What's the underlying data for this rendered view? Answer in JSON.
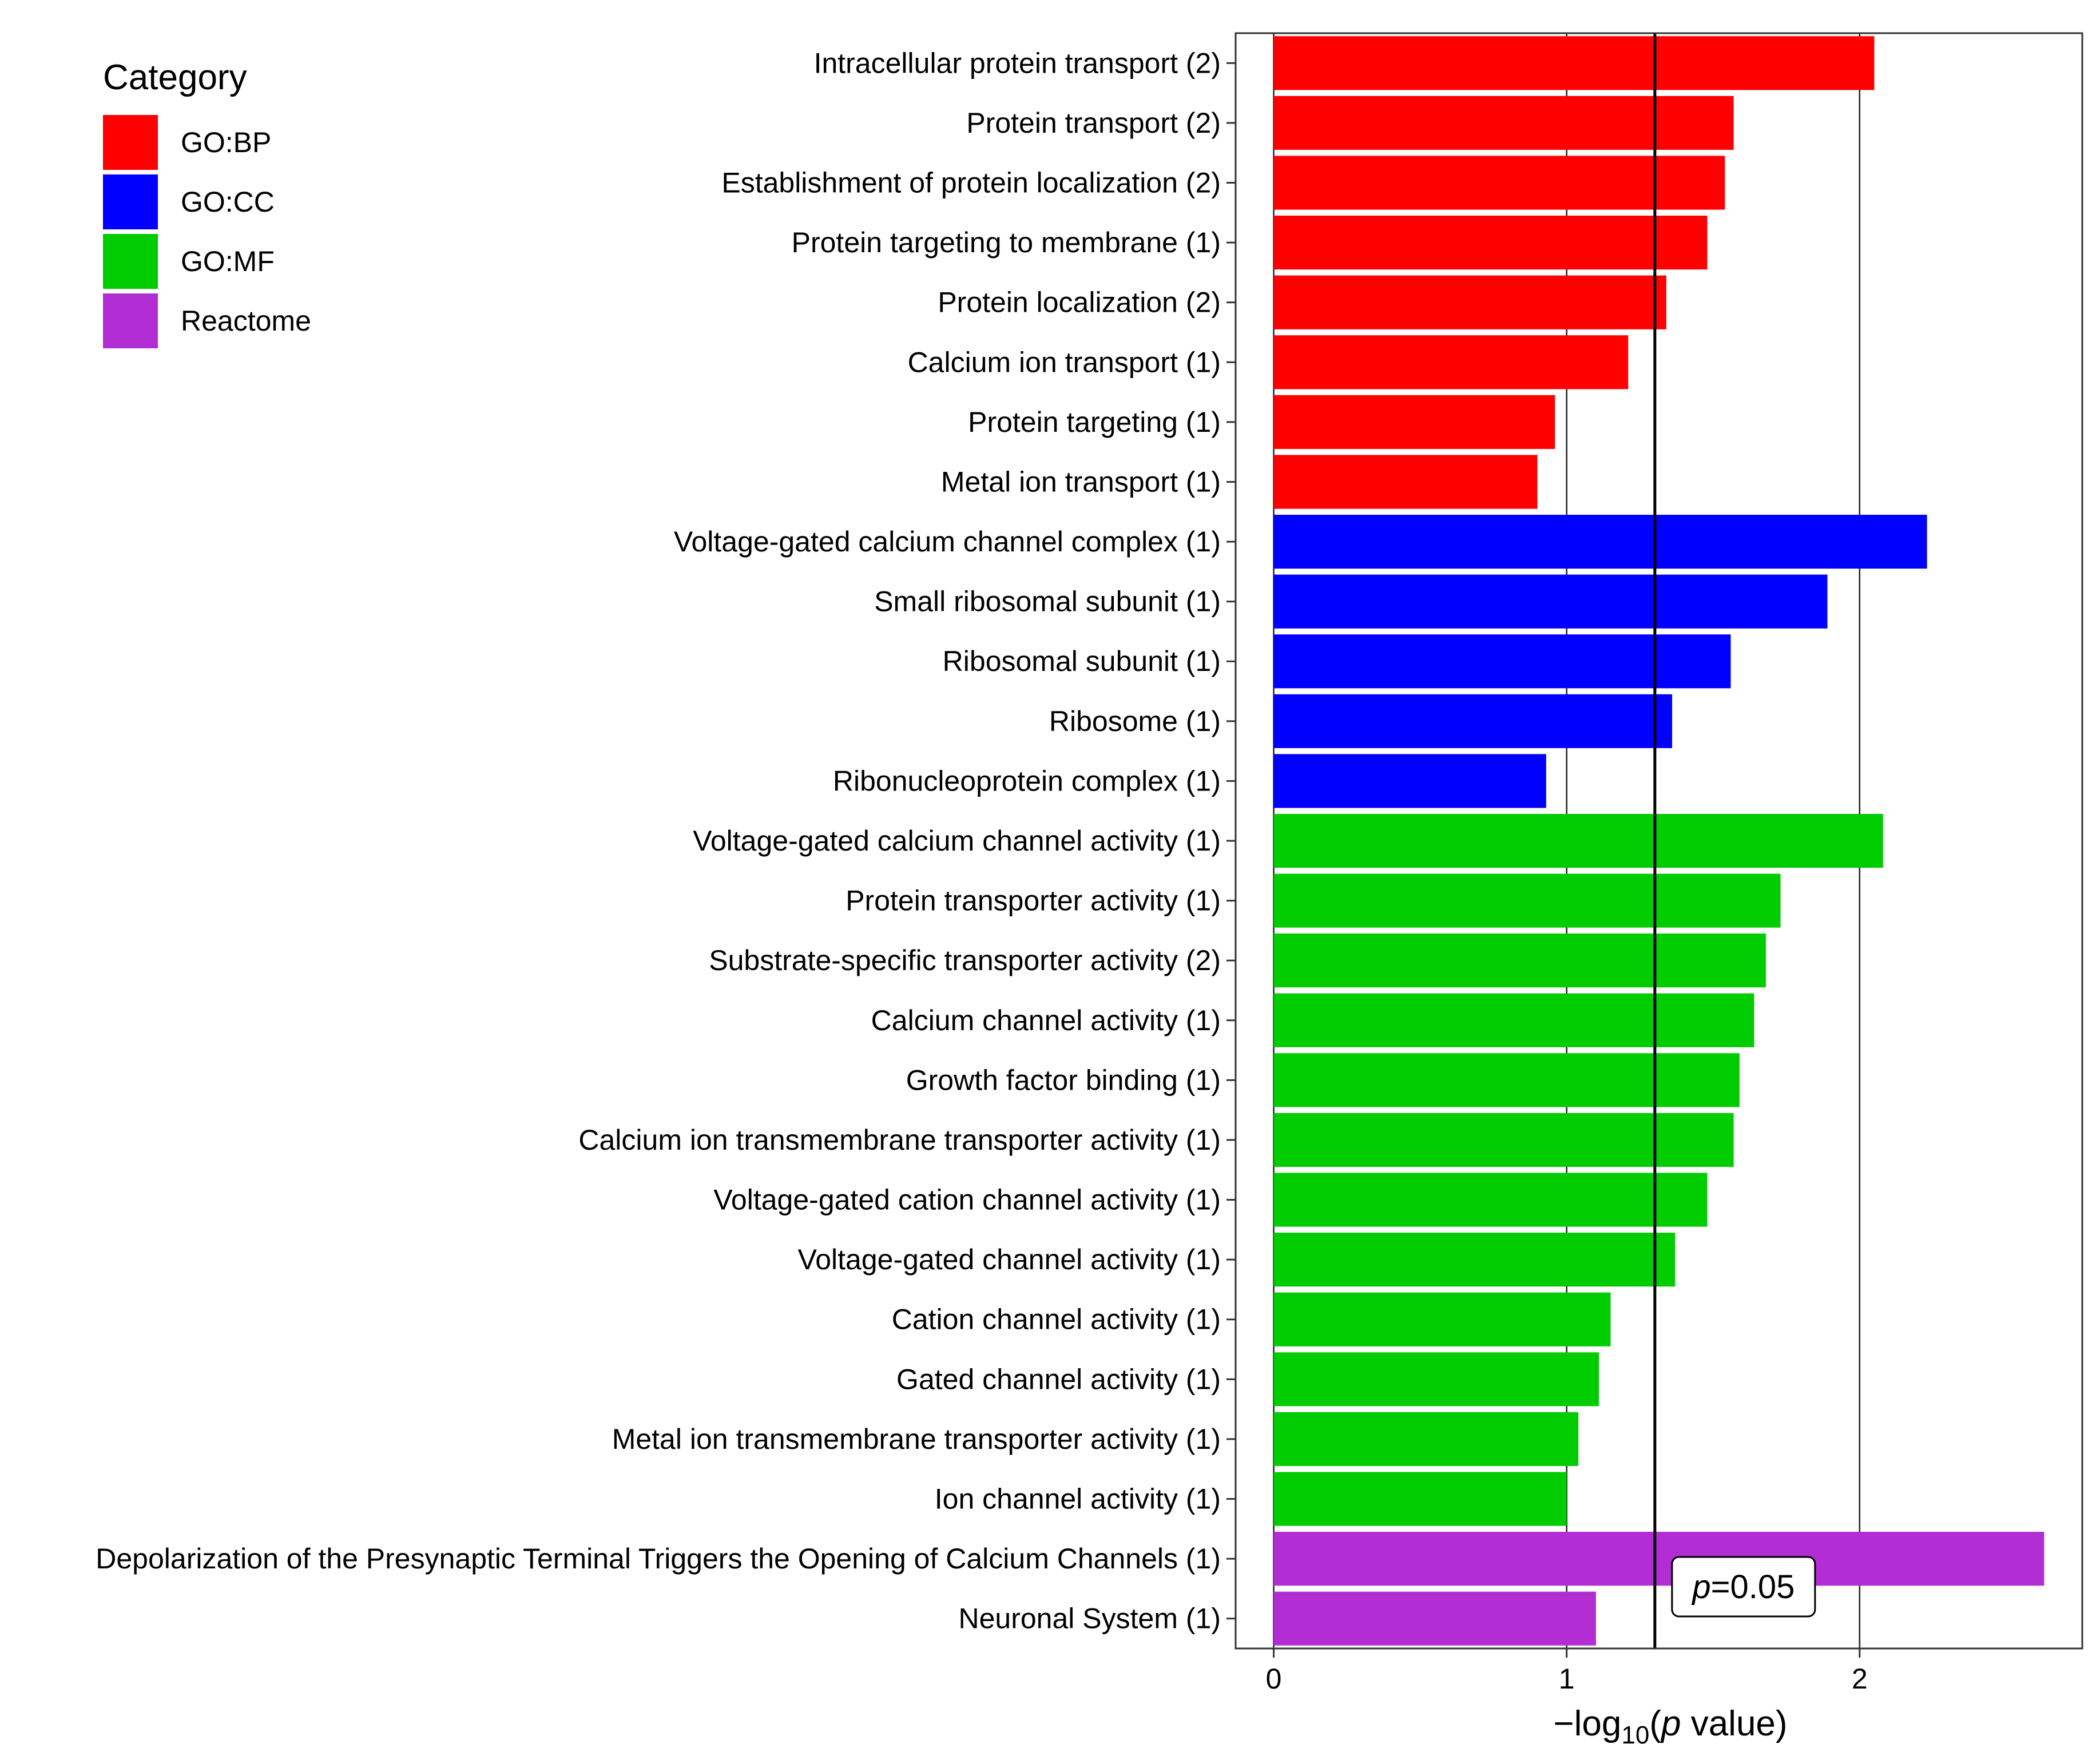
{
  "chart_data": {
    "type": "bar",
    "orientation": "horizontal",
    "xlabel": "−log10(p value)",
    "xlabel_parts": {
      "prefix": "−log",
      "subscript": "10",
      "open": "(",
      "italic": "p",
      "suffix": " value)"
    },
    "xlim": [
      -0.13,
      2.76
    ],
    "xticks": [
      0,
      1,
      2
    ],
    "xtick_labels": [
      "0",
      "1",
      "2"
    ],
    "grid": true,
    "threshold": {
      "value": 1.30103,
      "label_italic": "p",
      "label_rest": "=0.05"
    },
    "legend": {
      "title": "Category",
      "position": "top-left",
      "entries": [
        {
          "name": "GO:BP",
          "color": "#ff0000"
        },
        {
          "name": "GO:CC",
          "color": "#0000ff"
        },
        {
          "name": "GO:MF",
          "color": "#00cc00"
        },
        {
          "name": "Reactome",
          "color": "#b22ed4"
        }
      ]
    },
    "bars": [
      {
        "label": "Intracellular protein transport (2)",
        "value": 2.05,
        "category": "GO:BP"
      },
      {
        "label": "Protein transport (2)",
        "value": 1.57,
        "category": "GO:BP"
      },
      {
        "label": "Establishment of protein localization (2)",
        "value": 1.54,
        "category": "GO:BP"
      },
      {
        "label": "Protein targeting to membrane (1)",
        "value": 1.48,
        "category": "GO:BP"
      },
      {
        "label": "Protein localization (2)",
        "value": 1.34,
        "category": "GO:BP"
      },
      {
        "label": "Calcium ion transport (1)",
        "value": 1.21,
        "category": "GO:BP"
      },
      {
        "label": "Protein targeting (1)",
        "value": 0.96,
        "category": "GO:BP"
      },
      {
        "label": "Metal ion transport (1)",
        "value": 0.9,
        "category": "GO:BP"
      },
      {
        "label": "Voltage-gated calcium channel complex (1)",
        "value": 2.23,
        "category": "GO:CC"
      },
      {
        "label": "Small ribosomal subunit (1)",
        "value": 1.89,
        "category": "GO:CC"
      },
      {
        "label": "Ribosomal subunit (1)",
        "value": 1.56,
        "category": "GO:CC"
      },
      {
        "label": "Ribosome (1)",
        "value": 1.36,
        "category": "GO:CC"
      },
      {
        "label": "Ribonucleoprotein complex (1)",
        "value": 0.93,
        "category": "GO:CC"
      },
      {
        "label": "Voltage-gated calcium channel activity (1)",
        "value": 2.08,
        "category": "GO:MF"
      },
      {
        "label": "Protein transporter activity (1)",
        "value": 1.73,
        "category": "GO:MF"
      },
      {
        "label": "Substrate-specific transporter activity (2)",
        "value": 1.68,
        "category": "GO:MF"
      },
      {
        "label": "Calcium channel activity (1)",
        "value": 1.64,
        "category": "GO:MF"
      },
      {
        "label": "Growth factor binding (1)",
        "value": 1.59,
        "category": "GO:MF"
      },
      {
        "label": "Calcium ion transmembrane transporter activity (1)",
        "value": 1.57,
        "category": "GO:MF"
      },
      {
        "label": "Voltage-gated cation channel activity (1)",
        "value": 1.48,
        "category": "GO:MF"
      },
      {
        "label": "Voltage-gated channel activity (1)",
        "value": 1.37,
        "category": "GO:MF"
      },
      {
        "label": "Cation channel activity (1)",
        "value": 1.15,
        "category": "GO:MF"
      },
      {
        "label": "Gated channel activity (1)",
        "value": 1.11,
        "category": "GO:MF"
      },
      {
        "label": "Metal ion transmembrane transporter activity (1)",
        "value": 1.04,
        "category": "GO:MF"
      },
      {
        "label": "Ion channel activity (1)",
        "value": 1.0,
        "category": "GO:MF"
      },
      {
        "label": "Depolarization of the Presynaptic Terminal Triggers the Opening of Calcium Channels (1)",
        "value": 2.63,
        "category": "Reactome"
      },
      {
        "label": "Neuronal System (1)",
        "value": 1.1,
        "category": "Reactome"
      }
    ]
  }
}
